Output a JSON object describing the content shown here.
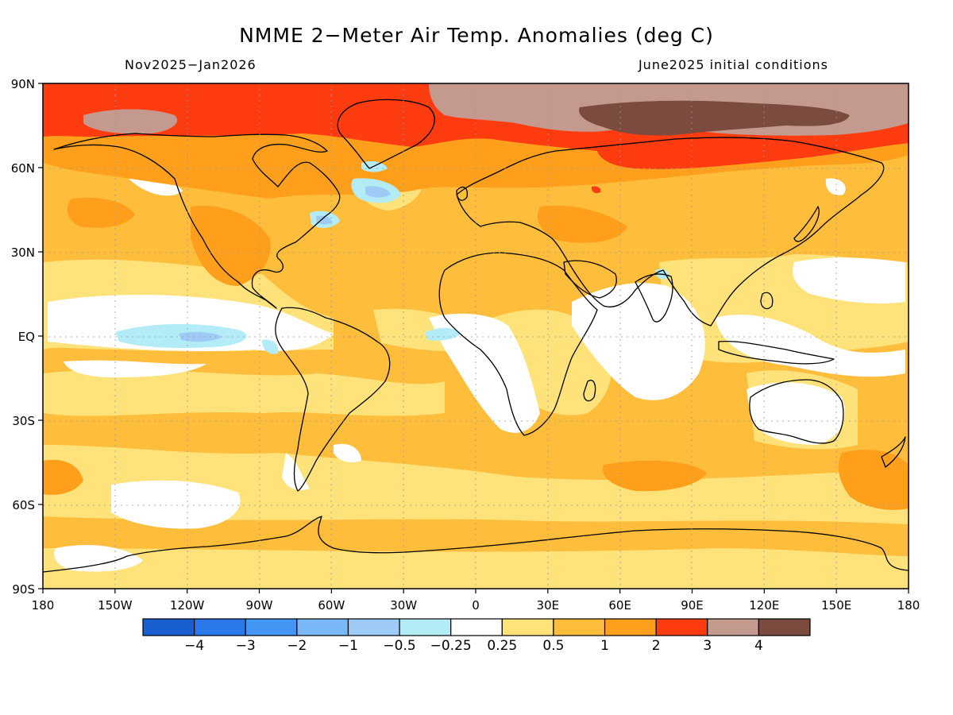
{
  "title": "NMME 2−Meter Air Temp. Anomalies (deg C)",
  "subtitle_left": "Nov2025−Jan2026",
  "subtitle_right": "June2025 initial conditions",
  "lat_labels": [
    "90N",
    "60N",
    "30N",
    "EQ",
    "30S",
    "60S",
    "90S"
  ],
  "lon_labels": [
    "180",
    "150W",
    "120W",
    "90W",
    "60W",
    "30W",
    "0",
    "30E",
    "60E",
    "90E",
    "120E",
    "150E",
    "180"
  ],
  "colorbar": {
    "colors": [
      "#1a5fd0",
      "#2a78ea",
      "#4496f3",
      "#7ab7f7",
      "#9dcbf5",
      "#b3ecf6",
      "#ffffff",
      "#ffe27a",
      "#ffbd3c",
      "#ff9f1c",
      "#ff3b10",
      "#c49a8e",
      "#7a4b3e"
    ],
    "labels": [
      "−4",
      "−3",
      "−2",
      "−1",
      "−0.5",
      "−0.25",
      "0.25",
      "0.5",
      "1",
      "2",
      "3",
      "4"
    ]
  },
  "colors": {
    "base": "#ffbd3c",
    "neutral": "#ffffff",
    "light_warm": "#ffe27a",
    "warm": "#ff9f1c",
    "hot": "#ff3b10",
    "very_hot": "#c49a8e",
    "extreme": "#7a4b3e",
    "cool": "#b3ecf6",
    "cooler": "#9dcbf5",
    "cold": "#7ab7f7",
    "coast": "#000000"
  }
}
